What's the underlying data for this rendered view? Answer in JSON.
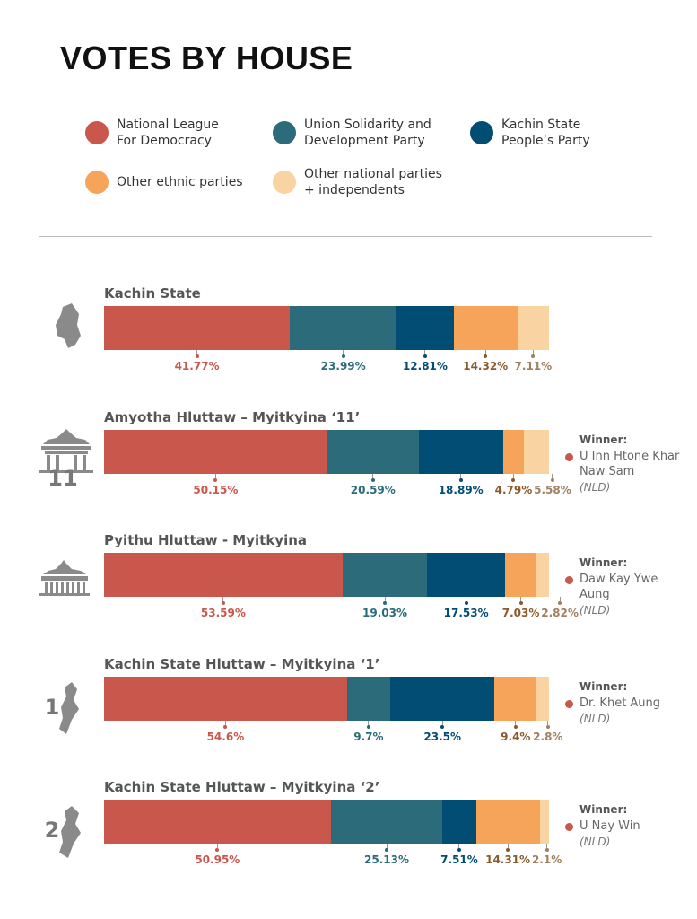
{
  "chart_data": {
    "type": "stacked_bar_horizontal",
    "title": "VOTES BY HOUSE",
    "categories": [
      "Kachin State",
      "Amyotha Hluttaw – Myitkyina ‘11’",
      "Pyithu Hluttaw - Myitkyina",
      "Kachin State Hluttaw – Myitkyina ‘1’",
      "Kachin State Hluttaw – Myitkyina ‘2’"
    ],
    "icon_labels": [
      null,
      "11",
      null,
      "1",
      "2"
    ],
    "xlim": [
      0,
      100
    ],
    "series": [
      {
        "name": "National League For Democracy",
        "color": "#c9574c",
        "label_color": "#c9574c",
        "values": [
          41.77,
          50.15,
          53.59,
          54.6,
          50.95
        ],
        "value_labels": [
          "41.77%",
          "50.15%",
          "53.59%",
          "54.6%",
          "50.95%"
        ]
      },
      {
        "name": "Union Solidarity and Development Party",
        "color": "#2b6b7a",
        "label_color": "#2b6b7a",
        "values": [
          23.99,
          20.59,
          19.03,
          9.7,
          25.13
        ],
        "value_labels": [
          "23.99%",
          "20.59%",
          "19.03%",
          "9.7%",
          "25.13%"
        ]
      },
      {
        "name": "Kachin State People’s Party",
        "color": "#014d74",
        "label_color": "#014d74",
        "values": [
          12.81,
          18.89,
          17.53,
          23.5,
          7.51
        ],
        "value_labels": [
          "12.81%",
          "18.89%",
          "17.53%",
          "23.5%",
          "7.51%"
        ]
      },
      {
        "name": "Other ethnic parties",
        "color": "#f6a45a",
        "label_color": "#8a5a2b",
        "values": [
          14.32,
          4.79,
          7.03,
          9.4,
          14.31
        ],
        "value_labels": [
          "14.32%",
          "4.79%",
          "7.03%",
          "9.4%",
          "14.31%"
        ]
      },
      {
        "name": "Other national parties + independents",
        "color": "#fad3a3",
        "label_color": "#a08060",
        "values": [
          7.11,
          5.58,
          2.82,
          2.8,
          2.1
        ],
        "value_labels": [
          "7.11%",
          "5.58%",
          "2.82%",
          "2.8%",
          "2.1%"
        ]
      }
    ],
    "winners": {
      "label": "Winner:",
      "names": [
        null,
        "U Inn Htone Khar Naw Sam",
        "Daw Kay Ywe Aung",
        "Dr. Khet Aung",
        "U Nay Win"
      ],
      "party": [
        null,
        "(NLD)",
        "(NLD)",
        "(NLD)",
        "(NLD)"
      ]
    }
  }
}
